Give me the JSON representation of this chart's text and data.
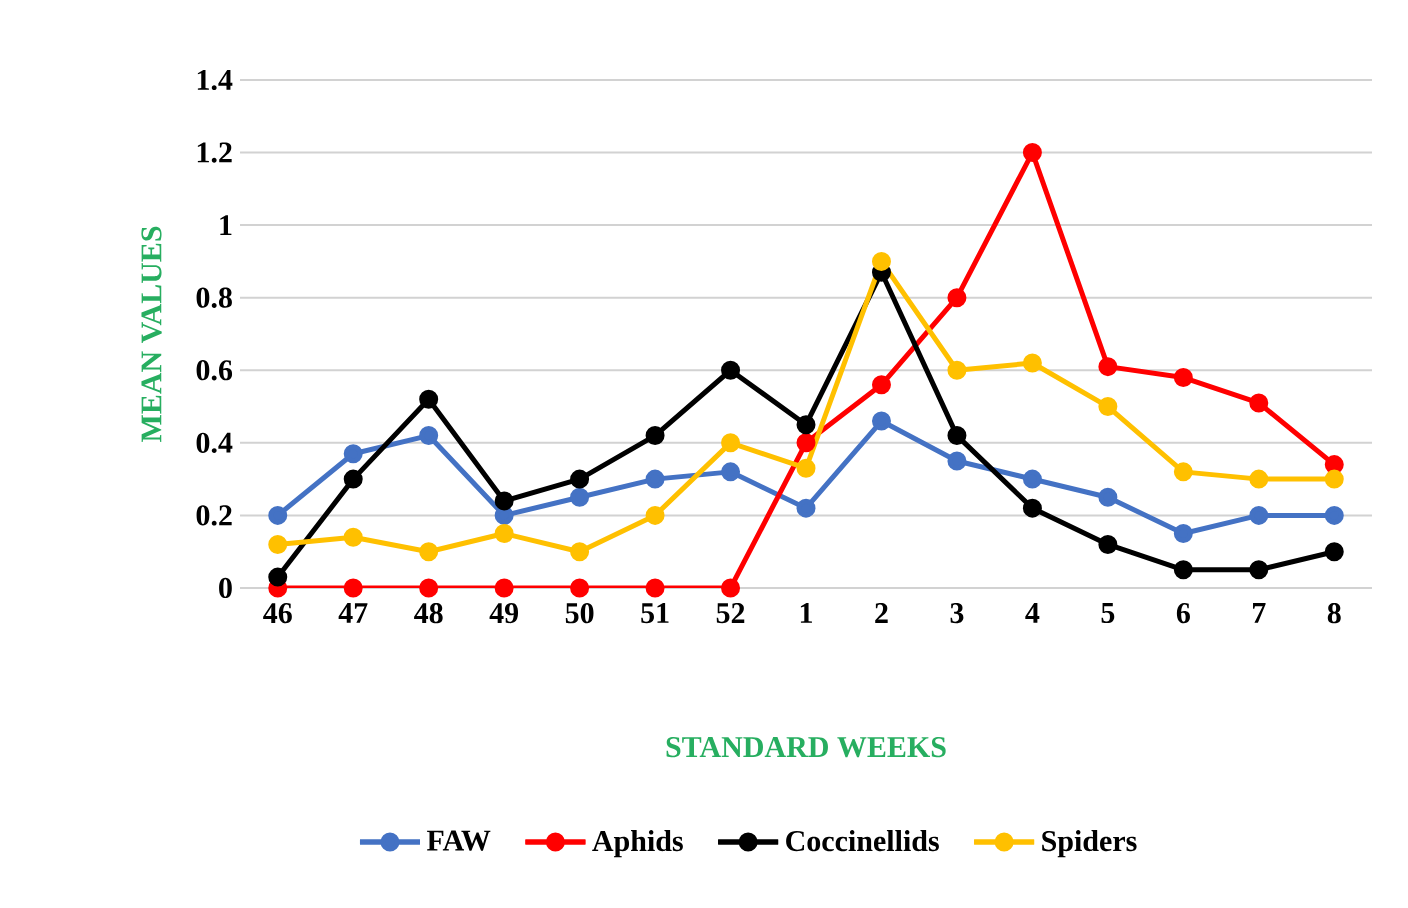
{
  "chart_data": {
    "type": "line",
    "xlabel": "STANDARD WEEKS",
    "ylabel": "MEAN VALUES",
    "categories": [
      "46",
      "47",
      "48",
      "49",
      "50",
      "51",
      "52",
      "1",
      "2",
      "3",
      "4",
      "5",
      "6",
      "7",
      "8"
    ],
    "series": [
      {
        "name": "FAW",
        "color": "#4472c4",
        "values": [
          0.2,
          0.37,
          0.42,
          0.2,
          0.25,
          0.3,
          0.32,
          0.22,
          0.46,
          0.35,
          0.3,
          0.25,
          0.15,
          0.2,
          0.2
        ]
      },
      {
        "name": "Aphids",
        "color": "#ff0000",
        "values": [
          0,
          0,
          0,
          0,
          0,
          0,
          0,
          0.4,
          0.56,
          0.8,
          1.2,
          0.61,
          0.58,
          0.51,
          0.34
        ]
      },
      {
        "name": "Coccinellids",
        "color": "#000000",
        "values": [
          0.03,
          0.3,
          0.52,
          0.24,
          0.3,
          0.42,
          0.6,
          0.45,
          0.87,
          0.42,
          0.22,
          0.12,
          0.05,
          0.05,
          0.1
        ]
      },
      {
        "name": "Spiders",
        "color": "#ffc000",
        "values": [
          0.12,
          0.14,
          0.1,
          0.15,
          0.1,
          0.2,
          0.4,
          0.33,
          0.9,
          0.6,
          0.62,
          0.5,
          0.32,
          0.3,
          0.3
        ]
      }
    ],
    "ylim": [
      0,
      1.4
    ],
    "yticks": [
      0,
      0.2,
      0.4,
      0.6,
      0.8,
      1,
      1.2,
      1.4
    ],
    "grid": "y",
    "legend": "bottom",
    "marker": "circle",
    "line_style": "solid"
  }
}
